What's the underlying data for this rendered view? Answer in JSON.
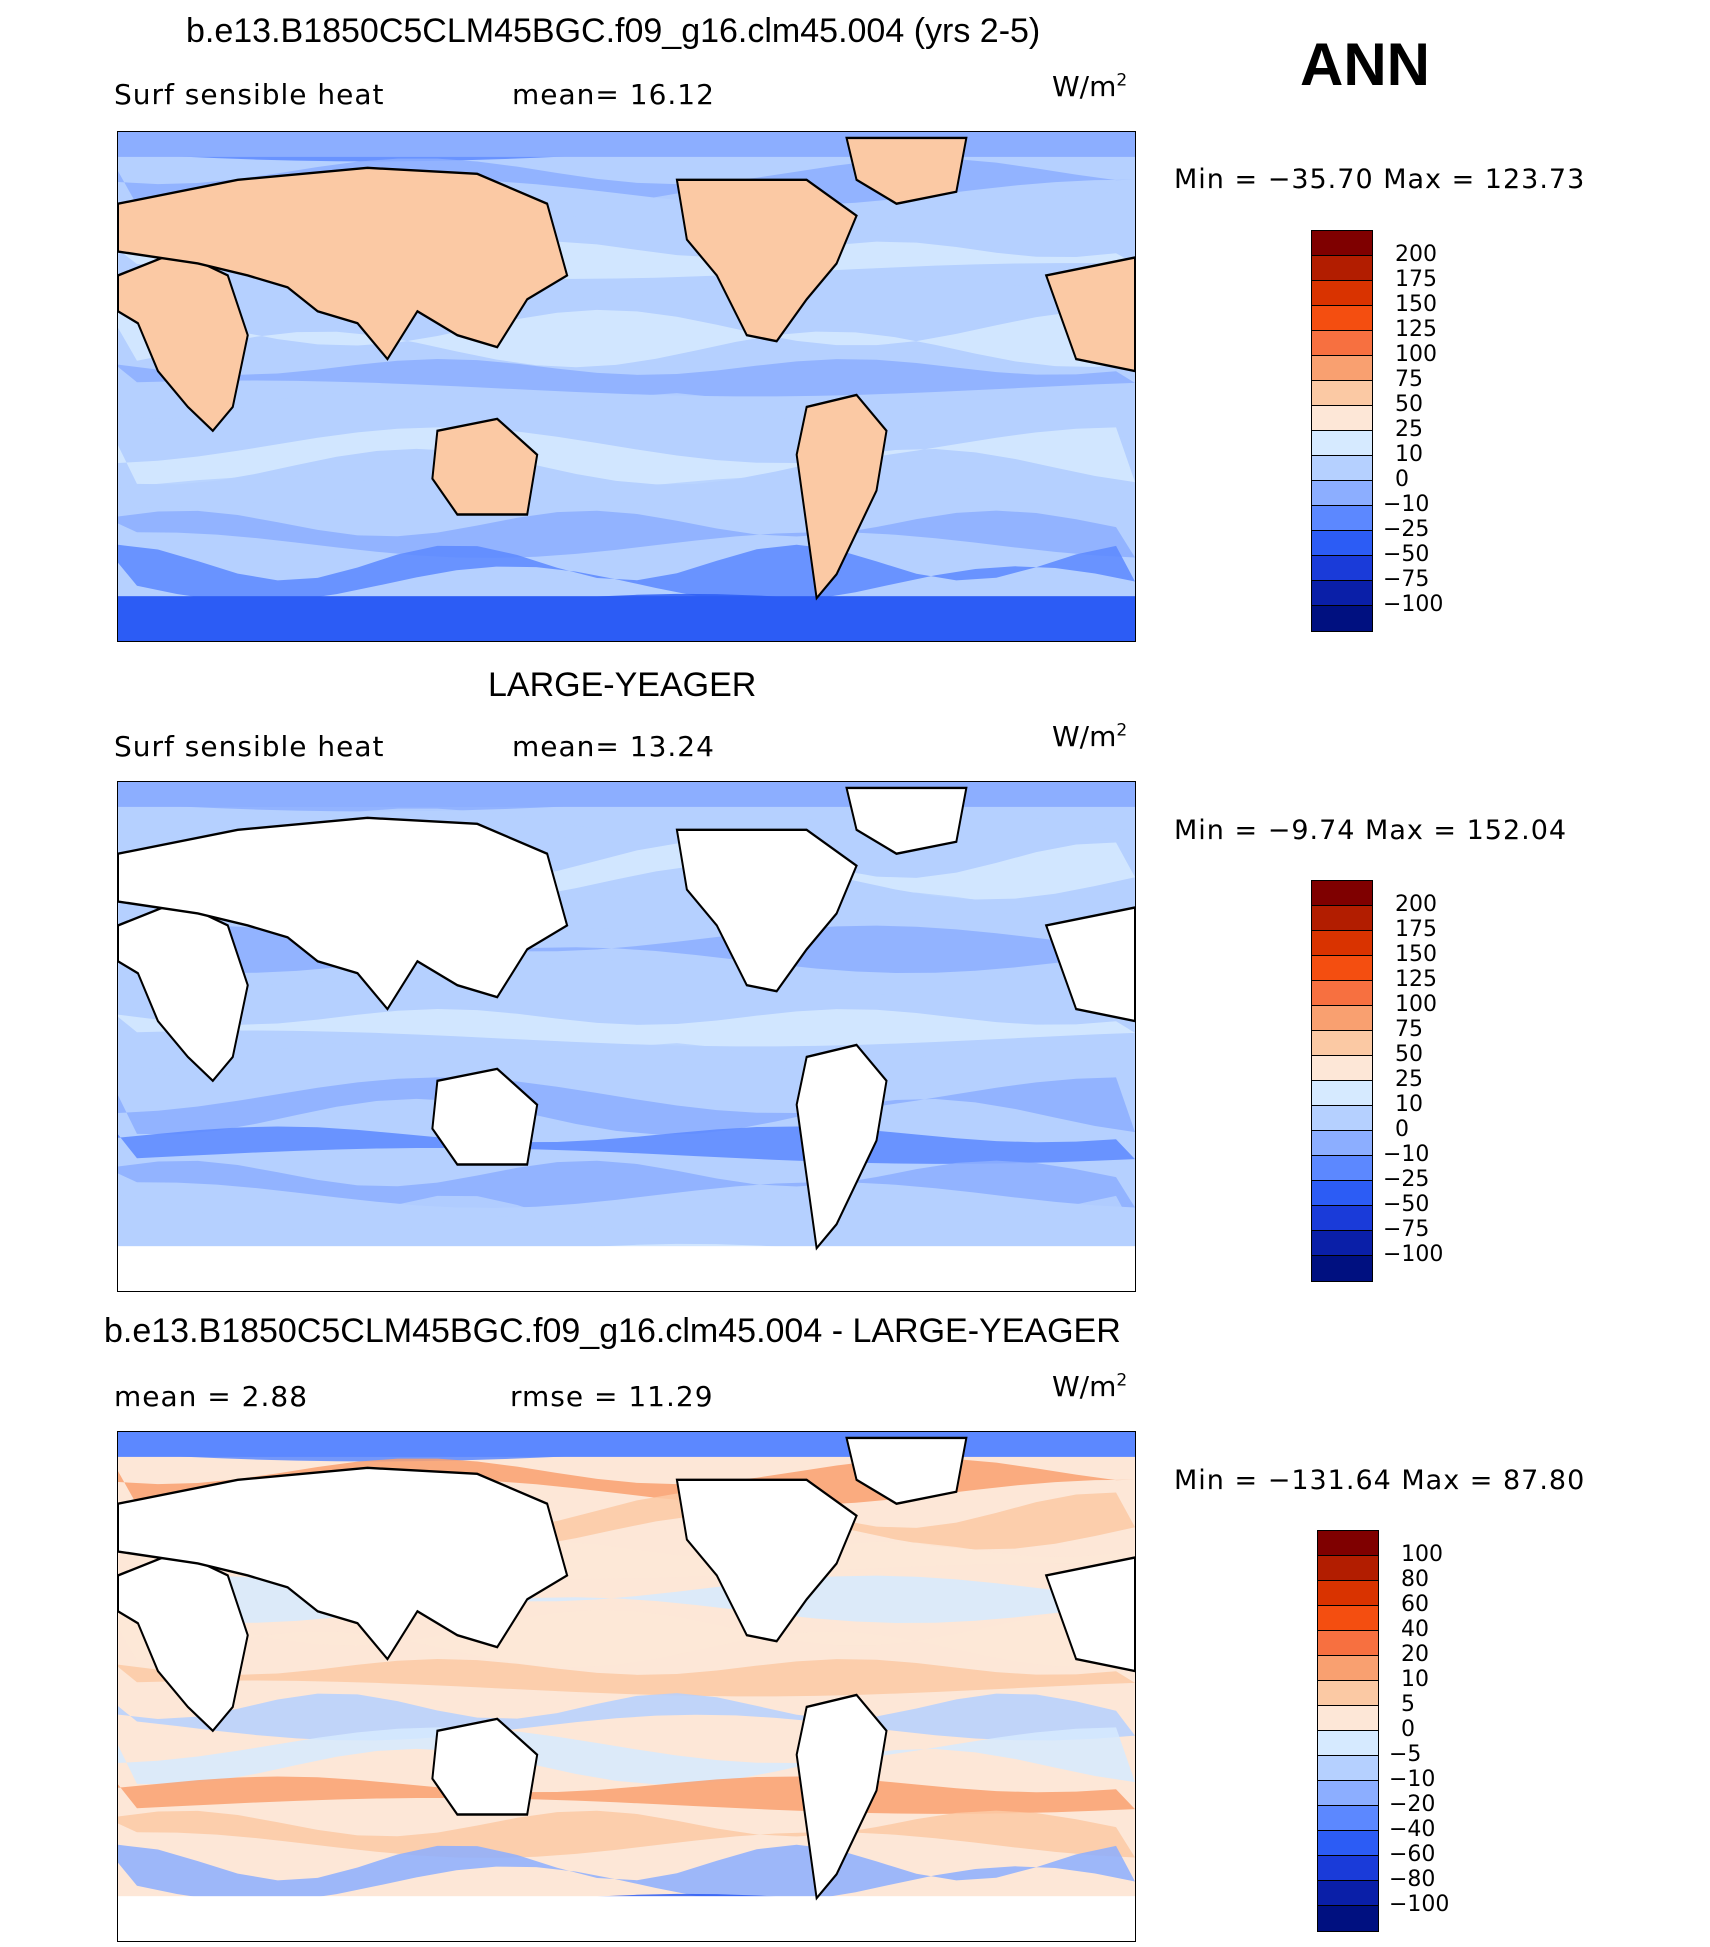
{
  "season": "ANN",
  "panels": [
    {
      "title": "b.e13.B1850C5CLM45BGC.f09_g16.clm45.004 (yrs 2-5)",
      "left_label": "Surf  sensible  heat",
      "stat_label": "mean=   16.12",
      "units": "W/m",
      "units_exp": "2",
      "minmax": "Min  =  −35.70  Max  =  123.73",
      "land_fill": true,
      "colorbar_labels": [
        "200",
        "175",
        "150",
        "125",
        "100",
        "75",
        "50",
        "25",
        "10",
        "0",
        "−10",
        "−25",
        "−50",
        "−75",
        "−100"
      ],
      "colorbar_colors": [
        "#7f0000",
        "#b21d00",
        "#d93300",
        "#f44e10",
        "#f77040",
        "#f9a070",
        "#fbc9a4",
        "#fde7d7",
        "#d6eaff",
        "#b5d0ff",
        "#8caeff",
        "#5c88ff",
        "#2c5cf5",
        "#1a3bd9",
        "#0a1fa8",
        "#001080"
      ]
    },
    {
      "title": "LARGE-YEAGER",
      "left_label": "Surf  sensible  heat",
      "stat_label": "mean=   13.24",
      "units": "W/m",
      "units_exp": "2",
      "minmax": "Min  =    −9.74  Max  =  152.04",
      "land_fill": false,
      "colorbar_labels": [
        "200",
        "175",
        "150",
        "125",
        "100",
        "75",
        "50",
        "25",
        "10",
        "0",
        "−10",
        "−25",
        "−50",
        "−75",
        "−100"
      ],
      "colorbar_colors": [
        "#7f0000",
        "#b21d00",
        "#d93300",
        "#f44e10",
        "#f77040",
        "#f9a070",
        "#fbc9a4",
        "#fde7d7",
        "#d6eaff",
        "#b5d0ff",
        "#8caeff",
        "#5c88ff",
        "#2c5cf5",
        "#1a3bd9",
        "#0a1fa8",
        "#001080"
      ]
    },
    {
      "title": "b.e13.B1850C5CLM45BGC.f09_g16.clm45.004 - LARGE-YEAGER",
      "left_label": "mean  =     2.88",
      "stat_label": "rmse  =    11.29",
      "units": "W/m",
      "units_exp": "2",
      "minmax": "Min  =  −131.64  Max  =    87.80",
      "land_fill": false,
      "colorbar_labels": [
        "100",
        "80",
        "60",
        "40",
        "20",
        "10",
        "5",
        "0",
        "−5",
        "−10",
        "−20",
        "−40",
        "−60",
        "−80",
        "−100"
      ],
      "colorbar_colors": [
        "#7f0000",
        "#b21d00",
        "#d93300",
        "#f44e10",
        "#f77040",
        "#f9a070",
        "#fbc9a4",
        "#fde7d7",
        "#d6eaff",
        "#b5d0ff",
        "#8caeff",
        "#5c88ff",
        "#2c5cf5",
        "#1a3bd9",
        "#0a1fa8",
        "#001080"
      ]
    }
  ]
}
